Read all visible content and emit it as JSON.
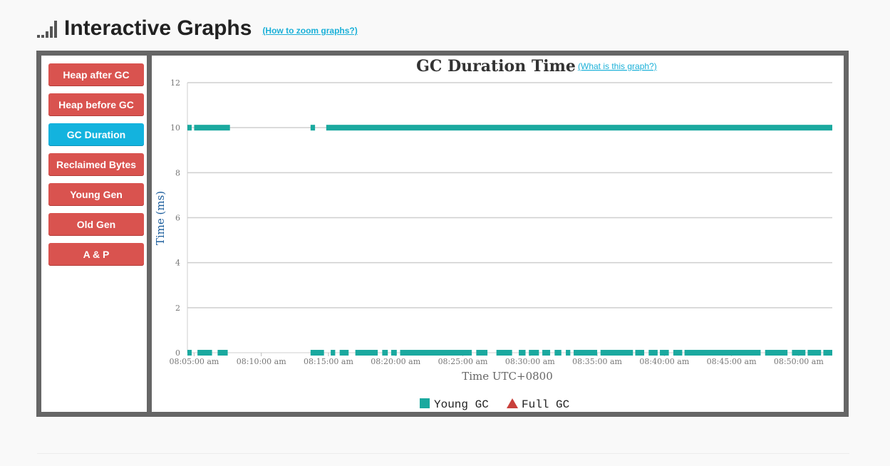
{
  "header": {
    "title": "Interactive Graphs",
    "zoom_link": "(How to zoom graphs?)"
  },
  "nav": {
    "items": [
      {
        "label": "Heap after GC",
        "active": false
      },
      {
        "label": "Heap before GC",
        "active": false
      },
      {
        "label": "GC Duration",
        "active": true
      },
      {
        "label": "Reclaimed Bytes",
        "active": false
      },
      {
        "label": "Young Gen",
        "active": false
      },
      {
        "label": "Old Gen",
        "active": false
      },
      {
        "label": "A & P",
        "active": false
      }
    ]
  },
  "colors": {
    "young_gc": "#1aa99f",
    "full_gc": "#c9403b",
    "active_button": "#13b3de",
    "button": "#d9534f"
  },
  "chart_data": {
    "type": "scatter",
    "title": "GC Duration Time",
    "help_link": "(What is this graph?)",
    "xlabel": "Time UTC+0800",
    "ylabel": "Time (ms)",
    "ylim": [
      0,
      12
    ],
    "yticks": [
      0,
      2,
      4,
      6,
      8,
      10,
      12
    ],
    "xlim": [
      "08:04:30",
      "08:52:30"
    ],
    "xticks": [
      "08:05:00 am",
      "08:10:00 am",
      "08:15:00 am",
      "08:20:00 am",
      "08:25:00 am",
      "08:30:00 am",
      "08:35:00 am",
      "08:40:00 am",
      "08:45:00 am",
      "08:50:00 am"
    ],
    "grid": true,
    "legend_position": "bottom-center",
    "series": [
      {
        "name": "Young GC",
        "marker": "square",
        "color": "#1aa99f",
        "clusters": [
          {
            "value": 10,
            "ranges": [
              [
                "08:04:30",
                "08:04:45"
              ],
              [
                "08:05:00",
                "08:07:40"
              ],
              [
                "08:13:40",
                "08:14:00"
              ],
              [
                "08:14:50",
                "08:52:30"
              ]
            ]
          },
          {
            "value": 0,
            "ranges": [
              [
                "08:04:30",
                "08:04:45"
              ],
              [
                "08:05:15",
                "08:06:20"
              ],
              [
                "08:06:45",
                "08:07:30"
              ],
              [
                "08:13:40",
                "08:14:40"
              ],
              [
                "08:15:10",
                "08:15:30"
              ],
              [
                "08:15:50",
                "08:16:30"
              ],
              [
                "08:17:00",
                "08:18:40"
              ],
              [
                "08:19:00",
                "08:19:25"
              ],
              [
                "08:19:40",
                "08:20:05"
              ],
              [
                "08:20:20",
                "08:25:40"
              ],
              [
                "08:26:00",
                "08:26:50"
              ],
              [
                "08:27:30",
                "08:28:40"
              ],
              [
                "08:29:10",
                "08:29:40"
              ],
              [
                "08:29:55",
                "08:30:40"
              ],
              [
                "08:30:55",
                "08:31:30"
              ],
              [
                "08:31:50",
                "08:32:20"
              ],
              [
                "08:32:40",
                "08:33:00"
              ],
              [
                "08:33:15",
                "08:35:00"
              ],
              [
                "08:35:15",
                "08:37:40"
              ],
              [
                "08:37:50",
                "08:38:30"
              ],
              [
                "08:38:50",
                "08:39:30"
              ],
              [
                "08:39:40",
                "08:40:20"
              ],
              [
                "08:40:40",
                "08:41:20"
              ],
              [
                "08:41:30",
                "08:47:10"
              ],
              [
                "08:47:30",
                "08:49:10"
              ],
              [
                "08:49:30",
                "08:50:30"
              ],
              [
                "08:50:40",
                "08:51:40"
              ],
              [
                "08:51:50",
                "08:52:30"
              ]
            ]
          }
        ]
      },
      {
        "name": "Full GC",
        "marker": "triangle",
        "color": "#c9403b",
        "clusters": []
      }
    ]
  }
}
